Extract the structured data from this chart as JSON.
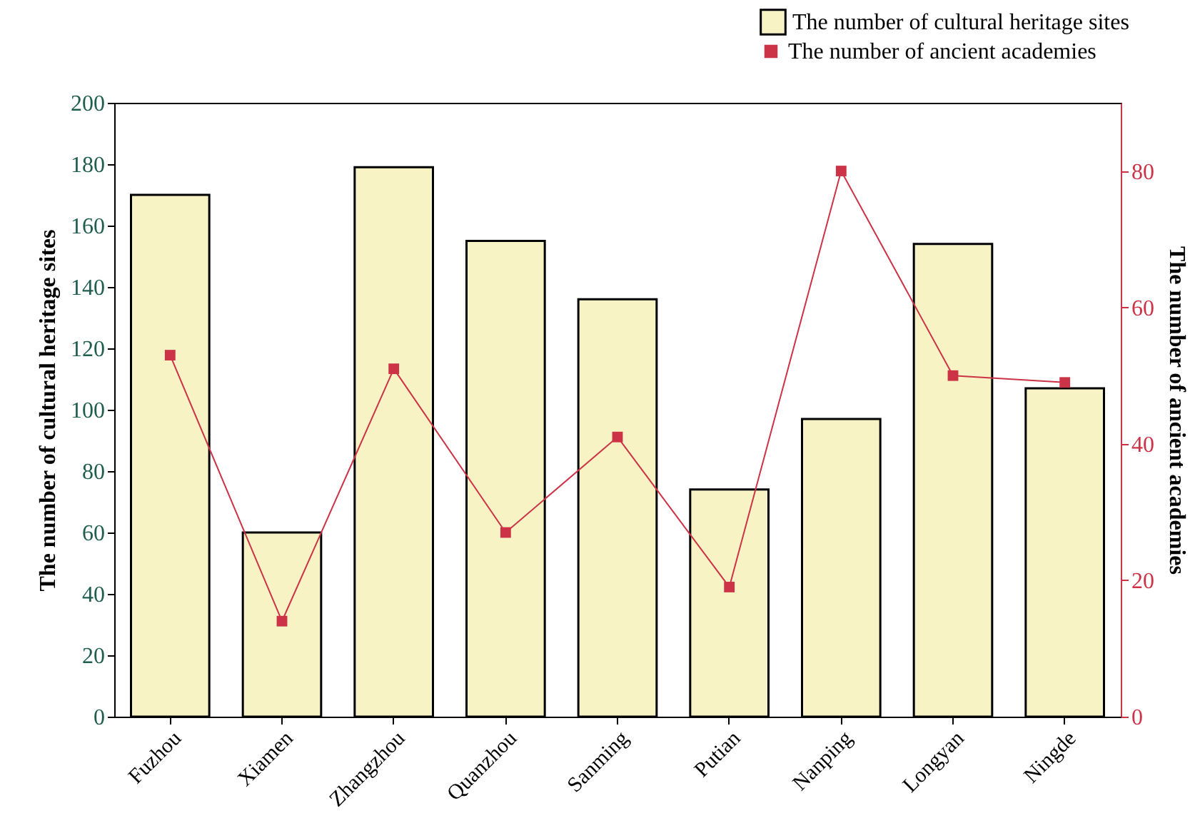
{
  "chart_data": {
    "type": "bar",
    "categories": [
      "Fuzhou",
      "Xiamen",
      "Zhangzhou",
      "Quanzhou",
      "Sanming",
      "Putian",
      "Nanping",
      "Longyan",
      "Ningde"
    ],
    "series": [
      {
        "name": "The number of cultural heritage sites",
        "color": "#f7f3c4",
        "values": [
          170,
          60,
          179,
          155,
          136,
          74,
          97,
          154,
          107
        ]
      },
      {
        "name": "The number of ancient academies",
        "type": "line",
        "axis": "y2",
        "marker": "square",
        "color": "#cc3347",
        "values": [
          53,
          14,
          51,
          27,
          41,
          19,
          80,
          50,
          49
        ]
      }
    ],
    "ylabel": "The number of cultural heritage sites",
    "y2label": "The number of ancient academies",
    "ylim": [
      0,
      200
    ],
    "yticks": [
      0,
      20,
      40,
      60,
      80,
      100,
      120,
      140,
      160,
      180,
      200
    ],
    "y2lim": [
      0,
      90
    ],
    "y2ticks": [
      0,
      20,
      40,
      60,
      80
    ],
    "grid": false,
    "legend": "top right"
  }
}
